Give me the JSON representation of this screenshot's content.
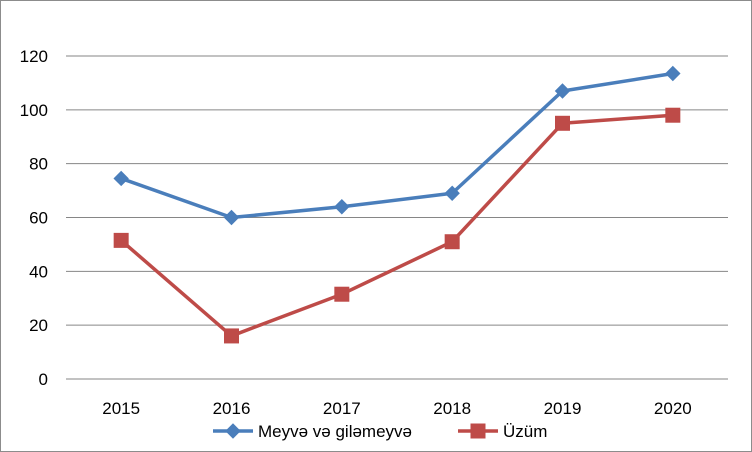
{
  "chart_data": {
    "type": "line",
    "categories": [
      "2015",
      "2016",
      "2017",
      "2018",
      "2019",
      "2020"
    ],
    "series": [
      {
        "name": "Meyvə və giləmeyvə",
        "values": [
          74.5,
          60.0,
          64.0,
          69.0,
          107.0,
          113.5
        ],
        "color": "#4A7EBB",
        "marker": "diamond"
      },
      {
        "name": "Üzüm",
        "values": [
          51.5,
          16.0,
          31.5,
          51.0,
          95.0,
          98.0
        ],
        "color": "#BE4B48",
        "marker": "square"
      }
    ],
    "ylim": [
      0,
      120
    ],
    "yticks": [
      0,
      20,
      40,
      60,
      80,
      100,
      120
    ],
    "grid": true,
    "legend_position": "bottom",
    "title": "",
    "xlabel": "",
    "ylabel": ""
  }
}
